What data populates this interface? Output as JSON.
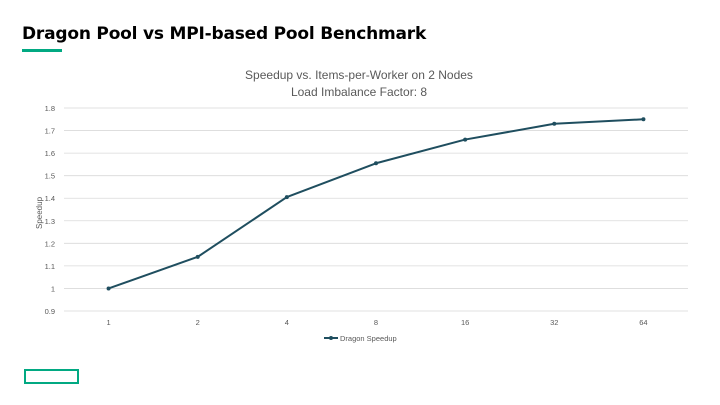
{
  "slide": {
    "title": "Dragon Pool vs MPI-based Pool Benchmark"
  },
  "colors": {
    "accent": "#01a982",
    "series": "#1f4e5f",
    "grid": "#d9d9d9",
    "text": "#595959"
  },
  "chart_data": {
    "type": "line",
    "title": "Speedup vs. Items-per-Worker on 2 Nodes",
    "subtitle": "Load Imbalance Factor: 8",
    "xlabel": "",
    "ylabel": "Speedup",
    "categories": [
      "1",
      "2",
      "4",
      "8",
      "16",
      "32",
      "64"
    ],
    "series": [
      {
        "name": "Dragon Speedup",
        "values": [
          1.0,
          1.14,
          1.405,
          1.555,
          1.66,
          1.73,
          1.75
        ]
      }
    ],
    "ylim": [
      0.9,
      1.8
    ],
    "yticks": [
      "0.9",
      "1",
      "1.1",
      "1.2",
      "1.3",
      "1.4",
      "1.5",
      "1.6",
      "1.7",
      "1.8"
    ],
    "grid": true,
    "legend": "bottom",
    "markers": true
  }
}
